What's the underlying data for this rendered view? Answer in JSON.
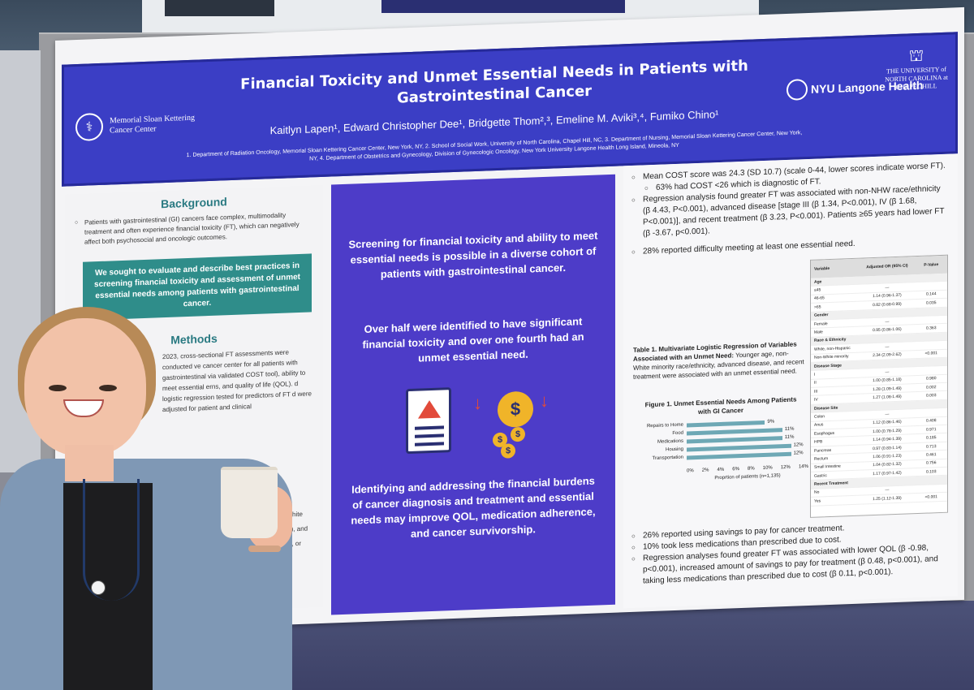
{
  "poster": {
    "title_line1": "Financial Toxicity and Unmet Essential Needs in Patients with",
    "title_line2": "Gastrointestinal Cancer",
    "authors": "Kaitlyn Lapen¹,  Edward Christopher Dee¹,  Bridgette Thom²,³,  Emeline M. Aviki³,⁴,  Fumiko Chino¹",
    "affiliations": "1. Department of Radiation Oncology, Memorial Sloan Kettering Cancer Center, New York, NY, 2. School of Social Work, University of North Carolina, Chapel Hill, NC, 3. Department of Nursing, Memorial Sloan Kettering Cancer Center, New York, NY, 4. Department of Obstetrics and Gynecology, Division of Gynecologic Oncology, New York University Langone Health Long Island, Mineola, NY",
    "logo_msk": "Memorial Sloan Kettering Cancer Center",
    "logo_nyu": "NYU Langone Health",
    "logo_unc": "THE UNIVERSITY of NORTH CAROLINA at CHAPEL HILL"
  },
  "left": {
    "background_title": "Background",
    "background_text": "Patients with gastrointestinal (GI) cancers face complex, multimodality treatment and often experience financial toxicity (FT), which can negatively affect both psychosocial and oncologic outcomes.",
    "aim_text": "We sought to evaluate and describe best practices in screening financial toxicity and assessment of unmet essential needs among patients with gastrointestinal cancer.",
    "methods_title": "Methods",
    "methods_text": "2023, cross-sectional FT assessments were conducted ve cancer center for all patients with gastrointestinal via validated COST tool), ability to meet essential erns, and quality of life (QOL). d logistic regression tested for predictors of FT d were adjusted for patient and clinical",
    "methods_extra_1": "nic White",
    "methods_extra_2": "(21%), and",
    "methods_extra_3": "erapy, or"
  },
  "middle": {
    "p1": "Screening for financial toxicity and ability to meet essential needs is possible in a diverse cohort of patients with gastrointestinal cancer.",
    "p2": "Over half were identified to have significant financial toxicity and over one fourth had an unmet essential need.",
    "p3": "Identifying and addressing the financial burdens of cancer diagnosis and treatment and essential needs may improve QOL, medication adherence, and cancer survivorship."
  },
  "right": {
    "b1": "Mean COST score was 24.3 (SD 10.7) (scale 0-44, lower scores indicate worse FT).",
    "b1a": "63% had COST <26 which is diagnostic of FT.",
    "b2": "Regression analysis found greater FT was associated with non-NHW race/ethnicity (β 4.43, P<0.001), advanced disease [stage III (β 1.34, P<0.001), IV (β 1.68, P<0.001)], and recent treatment (β 3.23, P<0.001). Patients ≥65 years had lower FT (β -3.67, p<0.001).",
    "b3": "28% reported difficulty meeting at least one essential need.",
    "table_caption_bold": "Table 1. Multivariate Logistic Regression of Variables Associated with an Unmet Need:",
    "table_caption_rest": " Younger age, non-White minority race/ethnicity, advanced disease, and recent treatment were associated with an unmet essential need.",
    "fig_title": "Figure 1. Unmet Essential Needs Among Patients with GI Cancer",
    "fig_xlabel": "Proprtion of patients (n=1,135)",
    "b4": "26% reported using savings to pay for cancer treatment.",
    "b5": "10% took less medications than prescribed due to cost.",
    "b6": "Regression analyses found greater FT was associated with lower QOL (β -0.98, p<0.001), increased amount of savings to pay for treatment (β 0.48, p<0.001), and taking less medications than prescribed due to cost (β 0.11, p<0.001)."
  },
  "or_table": {
    "headers": [
      "Variable",
      "Adjusted OR (95% CI)",
      "P-Value"
    ],
    "rows": [
      {
        "v": "Age",
        "or": "",
        "p": "",
        "group": true
      },
      {
        "v": "≤45",
        "or": "—",
        "p": ""
      },
      {
        "v": "46-65",
        "or": "1.14 (0.96-1.37)",
        "p": "0.144"
      },
      {
        "v": ">65",
        "or": "0.82 (0.68-0.99)",
        "p": "0.035"
      },
      {
        "v": "Gender",
        "or": "",
        "p": "",
        "group": true
      },
      {
        "v": "Female",
        "or": "—",
        "p": ""
      },
      {
        "v": "Male",
        "or": "0.95 (0.86-1.06)",
        "p": "0.363"
      },
      {
        "v": "Race & Ethnicity",
        "or": "",
        "p": "",
        "group": true
      },
      {
        "v": "White, non-Hispanic",
        "or": "—",
        "p": ""
      },
      {
        "v": "Non-White minority",
        "or": "2.34 (2.09-2.62)",
        "p": "<0.001"
      },
      {
        "v": "Disease Stage",
        "or": "",
        "p": "",
        "group": true
      },
      {
        "v": "I",
        "or": "—",
        "p": ""
      },
      {
        "v": "II",
        "or": "1.00 (0.85-1.18)",
        "p": "0.980"
      },
      {
        "v": "III",
        "or": "1.28 (1.09-1.49)",
        "p": "0.002"
      },
      {
        "v": "IV",
        "or": "1.27 (1.08-1.49)",
        "p": "0.003"
      },
      {
        "v": "Disease Site",
        "or": "",
        "p": "",
        "group": true
      },
      {
        "v": "Colon",
        "or": "—",
        "p": ""
      },
      {
        "v": "Anus",
        "or": "1.12 (0.86-1.46)",
        "p": "0.408"
      },
      {
        "v": "Esophagus",
        "or": "1.00 (0.78-1.29)",
        "p": "0.971"
      },
      {
        "v": "HPB",
        "or": "1.14 (0.94-1.39)",
        "p": "0.185"
      },
      {
        "v": "Pancreas",
        "or": "0.97 (0.83-1.14)",
        "p": "0.713"
      },
      {
        "v": "Rectum",
        "or": "1.06 (0.91-1.23)",
        "p": "0.461"
      },
      {
        "v": "Small Intestine",
        "or": "1.04 (0.82-1.32)",
        "p": "0.756"
      },
      {
        "v": "Gastric",
        "or": "1.17 (0.97-1.42)",
        "p": "0.103"
      },
      {
        "v": "Recent Treatment",
        "or": "",
        "p": "",
        "group": true
      },
      {
        "v": "No",
        "or": "—",
        "p": ""
      },
      {
        "v": "Yes",
        "or": "1.25 (1.12-1.39)",
        "p": "<0.001"
      }
    ]
  },
  "chart_data": {
    "type": "bar",
    "orientation": "horizontal",
    "title": "Figure 1. Unmet Essential Needs Among Patients with GI Cancer",
    "categories": [
      "Repairs to Home",
      "Food",
      "Medications",
      "Housing",
      "Transportation"
    ],
    "values": [
      9,
      11,
      11,
      12,
      12
    ],
    "value_labels": [
      "9%",
      "11%",
      "11%",
      "12%",
      "12%"
    ],
    "x_ticks": [
      "0%",
      "2%",
      "4%",
      "6%",
      "8%",
      "10%",
      "12%",
      "14%"
    ],
    "xlim": [
      0,
      14
    ],
    "xlabel": "Proprtion of patients (n=1,135)",
    "ylabel": "",
    "grid": false
  },
  "colors": {
    "header_blue": "#3b3ec5",
    "middle_purple": "#4d3cc8",
    "teal": "#2f8d8a",
    "bar": "#6ea8b5"
  }
}
